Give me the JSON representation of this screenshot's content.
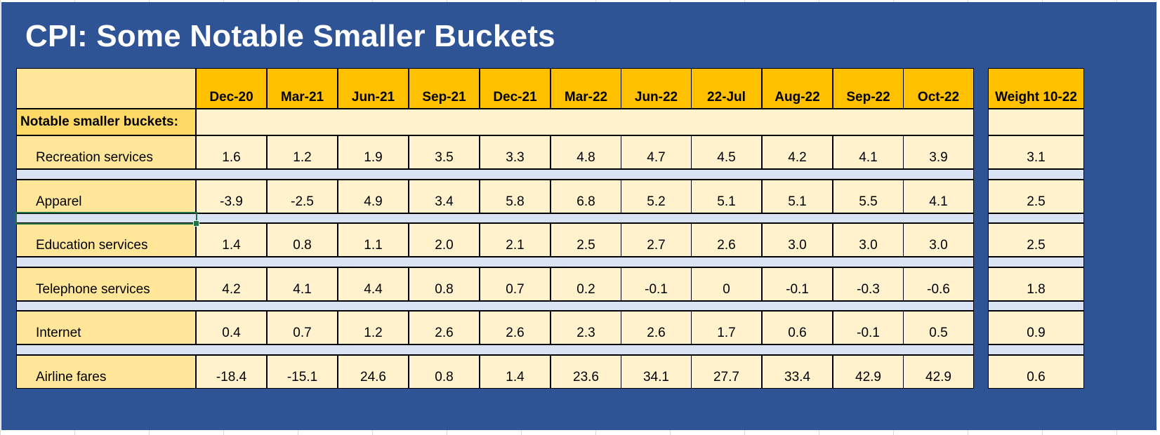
{
  "title": "CPI: Some Notable Smaller Buckets",
  "columns": [
    "Dec-20",
    "Mar-21",
    "Jun-21",
    "Sep-21",
    "Dec-21",
    "Mar-22",
    "Jun-22",
    "22-Jul",
    "Aug-22",
    "Sep-22",
    "Oct-22"
  ],
  "weight_header": "Weight 10-22",
  "section_label": "Notable smaller buckets:",
  "rows": [
    {
      "label": "Recreation services",
      "values": [
        "1.6",
        "1.2",
        "1.9",
        "3.5",
        "3.3",
        "4.8",
        "4.7",
        "4.5",
        "4.2",
        "4.1",
        "3.9"
      ],
      "weight": "3.1"
    },
    {
      "label": "Apparel",
      "values": [
        "-3.9",
        "-2.5",
        "4.9",
        "3.4",
        "5.8",
        "6.8",
        "5.2",
        "5.1",
        "5.1",
        "5.5",
        "4.1"
      ],
      "weight": "2.5"
    },
    {
      "label": "Education services",
      "values": [
        "1.4",
        "0.8",
        "1.1",
        "2.0",
        "2.1",
        "2.5",
        "2.7",
        "2.6",
        "3.0",
        "3.0",
        "3.0"
      ],
      "weight": "2.5"
    },
    {
      "label": "Telephone services",
      "values": [
        "4.2",
        "4.1",
        "4.4",
        "0.8",
        "0.7",
        "0.2",
        "-0.1",
        "0",
        "-0.1",
        "-0.3",
        "-0.6"
      ],
      "weight": "1.8"
    },
    {
      "label": "Internet",
      "values": [
        "0.4",
        "0.7",
        "1.2",
        "2.6",
        "2.6",
        "2.3",
        "2.6",
        "1.7",
        "0.6",
        "-0.1",
        "0.5"
      ],
      "weight": "0.9"
    },
    {
      "label": "Airline fares",
      "values": [
        "-18.4",
        "-15.1",
        "24.6",
        "0.8",
        "1.4",
        "23.6",
        "34.1",
        "27.7",
        "33.4",
        "42.9",
        "42.9"
      ],
      "weight": "0.6"
    }
  ],
  "colors": {
    "panel": "#2f5496",
    "header": "#ffc000",
    "label_fill": "#ffe699",
    "value_fill": "#fff2cc",
    "separator": "#dae3f3",
    "selection": "#217346"
  }
}
